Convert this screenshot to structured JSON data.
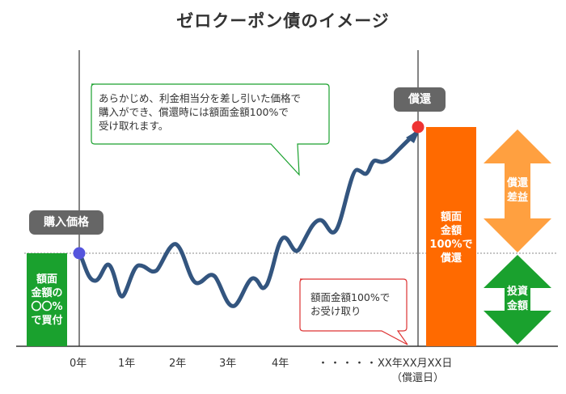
{
  "title": "ゼロクーポン債のイメージ",
  "labels": {
    "purchase_price": "購入価格",
    "redemption": "償還",
    "buy_box": [
      "額面",
      "金額の",
      "〇〇%",
      "で買付"
    ],
    "face_box": [
      "額面",
      "金額",
      "100%で",
      "償還"
    ],
    "gain_arrow": [
      "償還",
      "差益"
    ],
    "invest_arrow": [
      "投資",
      "金額"
    ]
  },
  "callouts": {
    "top": [
      "あらかじめ、利金相当分を差し引いた価格で",
      "購入ができ、償還時には額面金額100%で",
      "受け取れます。"
    ],
    "bottom": [
      "額面金額100%で",
      "お受け取り"
    ]
  },
  "axis": {
    "ticks": [
      "0年",
      "1年",
      "2年",
      "3年",
      "4年",
      "・・・・・",
      "XX年XX月XX日"
    ],
    "redemption_day": "（償還日）"
  },
  "colors": {
    "green": "#1aa12e",
    "orange": "#ff6a00",
    "light_orange": "#ffa040",
    "line": "#33557f",
    "pill": "#666666",
    "start_dot": "#5555dd",
    "end_dot": "#ee3333"
  }
}
